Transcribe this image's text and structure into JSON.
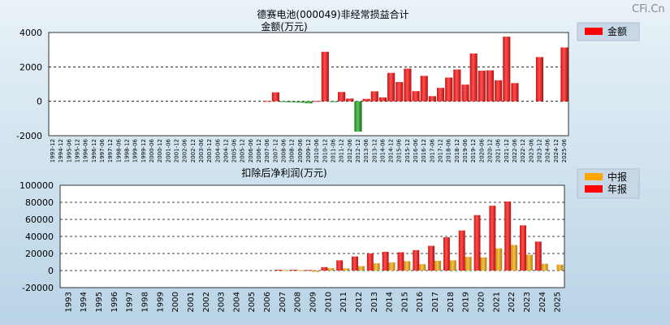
{
  "watermark": "CFi.Cn",
  "chart_data": [
    {
      "type": "bar",
      "title": "德赛电池(000049)非经常损益合计",
      "subtitle": "金额(万元)",
      "legend": [
        "金额"
      ],
      "legend_placement": "top-right",
      "ylim": [
        -2000,
        4000
      ],
      "yticks": [
        -2000,
        0,
        2000,
        4000
      ],
      "grid": true,
      "categories": [
        "1993-12",
        "1994-12",
        "1995-06",
        "1995-12",
        "1996-06",
        "1996-12",
        "1997-06",
        "1997-12",
        "1998-06",
        "1998-12",
        "1999-06",
        "1999-12",
        "2000-06",
        "2000-12",
        "2001-06",
        "2001-12",
        "2002-06",
        "2002-12",
        "2003-06",
        "2003-12",
        "2004-06",
        "2004-12",
        "2005-06",
        "2005-12",
        "2006-06",
        "2006-12",
        "2007-06",
        "2007-12",
        "2008-06",
        "2008-12",
        "2009-06",
        "2009-12",
        "2010-06",
        "2010-12",
        "2011-06",
        "2011-12",
        "2012-06",
        "2012-12",
        "2013-06",
        "2013-12",
        "2014-06",
        "2014-12",
        "2015-06",
        "2015-12",
        "2016-06",
        "2016-12",
        "2017-06",
        "2017-12",
        "2018-06",
        "2018-12",
        "2019-06",
        "2019-12",
        "2020-06",
        "2020-12",
        "2021-06",
        "2021-12",
        "2022-06",
        "2022-12",
        "2023-06",
        "2023-12",
        "2024-06",
        "2024-12",
        "2025-06"
      ],
      "values": [
        0,
        0,
        0,
        0,
        0,
        0,
        0,
        0,
        0,
        0,
        0,
        0,
        0,
        0,
        0,
        0,
        0,
        0,
        0,
        0,
        0,
        0,
        0,
        0,
        0,
        0,
        20,
        520,
        -30,
        -60,
        -80,
        -120,
        20,
        2880,
        -40,
        540,
        160,
        -1760,
        140,
        580,
        230,
        1650,
        1120,
        1900,
        590,
        1480,
        300,
        780,
        1380,
        1850,
        970,
        2780,
        1780,
        1800,
        1220,
        3760,
        1060,
        0,
        0,
        2570,
        0,
        0,
        3130
      ]
    },
    {
      "type": "bar",
      "title": "扣除后净利润(万元)",
      "legend": [
        "中报",
        "年报"
      ],
      "legend_placement": "top-right",
      "ylim": [
        -20000,
        100000
      ],
      "yticks": [
        -20000,
        0,
        20000,
        40000,
        60000,
        80000,
        100000
      ],
      "grid": true,
      "categories": [
        "1993",
        "1994",
        "1995",
        "1996",
        "1997",
        "1998",
        "1999",
        "2000",
        "2001",
        "2002",
        "2003",
        "2004",
        "2005",
        "2006",
        "2007",
        "2008",
        "2009",
        "2010",
        "2011",
        "2012",
        "2013",
        "2014",
        "2015",
        "2016",
        "2017",
        "2018",
        "2019",
        "2020",
        "2021",
        "2022",
        "2023",
        "2024",
        "2025"
      ],
      "series": [
        {
          "name": "中报",
          "values": [
            0,
            0,
            0,
            0,
            0,
            0,
            0,
            0,
            0,
            0,
            0,
            0,
            0,
            0,
            400,
            600,
            -1500,
            2800,
            2600,
            5200,
            8500,
            9500,
            11000,
            7500,
            11500,
            12000,
            16000,
            15500,
            26000,
            30000,
            18500,
            8000,
            7000
          ]
        },
        {
          "name": "年报",
          "values": [
            0,
            0,
            0,
            0,
            0,
            0,
            0,
            0,
            0,
            0,
            0,
            0,
            0,
            0,
            1000,
            1000,
            700,
            4000,
            12000,
            16500,
            20000,
            22000,
            21500,
            24000,
            29000,
            39000,
            47000,
            65000,
            76000,
            81000,
            53000,
            34000,
            null
          ]
        }
      ]
    }
  ]
}
